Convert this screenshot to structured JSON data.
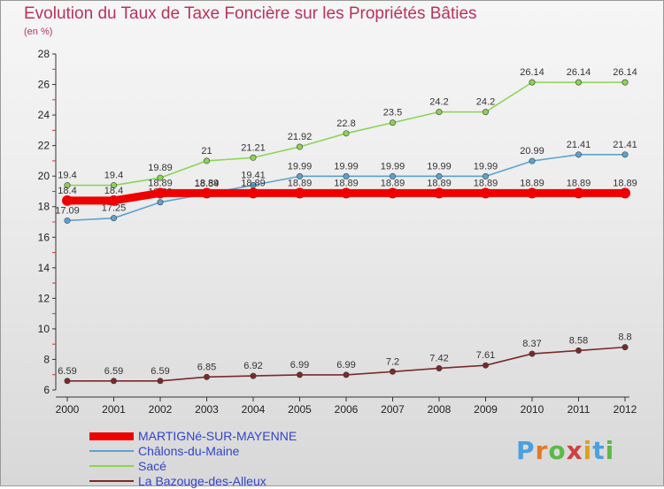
{
  "title": "Evolution du Taux de Taxe Foncière sur les Propriétés Bâties",
  "unit_label": "(en %)",
  "logo": {
    "text": "Proxiti"
  },
  "chart_data": {
    "type": "line",
    "x": [
      "2000",
      "2001",
      "2002",
      "2003",
      "2004",
      "2005",
      "2006",
      "2007",
      "2008",
      "2009",
      "2010",
      "2011",
      "2012"
    ],
    "ylim": [
      6,
      28
    ],
    "yticks": [
      "6",
      "8",
      "10",
      "12",
      "14",
      "16",
      "18",
      "20",
      "22",
      "24",
      "26",
      "28"
    ],
    "grid": false,
    "legend": "bottom-left",
    "series": [
      {
        "name": "MARTIGNé-SUR-MAYENNE",
        "color": "#ee0000",
        "values": [
          18.4,
          18.4,
          18.89,
          18.89,
          18.89,
          18.89,
          18.89,
          18.89,
          18.89,
          18.89,
          18.89,
          18.89,
          18.89
        ],
        "labels": [
          "18.4",
          "18.4",
          "18.89",
          "18.89",
          "18.89",
          "18.89",
          "18.89",
          "18.89",
          "18.89",
          "18.89",
          "18.89",
          "18.89",
          "18.89"
        ]
      },
      {
        "name": "Châlons-du-Maine",
        "color": "#5ba3d0",
        "values": [
          17.09,
          17.25,
          18.29,
          18.84,
          19.41,
          19.99,
          19.99,
          19.99,
          19.99,
          19.99,
          20.99,
          21.41,
          21.41
        ],
        "labels": [
          "17.09",
          "17.25",
          "18.29",
          "18.84",
          "19.41",
          "19.99",
          "19.99",
          "19.99",
          "19.99",
          "19.99",
          "20.99",
          "21.41",
          "21.41"
        ]
      },
      {
        "name": "Sacé",
        "color": "#8ad454",
        "values": [
          19.4,
          19.4,
          19.89,
          21,
          21.21,
          21.92,
          22.8,
          23.5,
          24.2,
          24.2,
          26.14,
          26.14,
          26.14
        ],
        "labels": [
          "19.4",
          "19.4",
          "19.89",
          "21",
          "21.21",
          "21.92",
          "22.8",
          "23.5",
          "24.2",
          "24.2",
          "26.14",
          "26.14",
          "26.14"
        ]
      },
      {
        "name": "La Bazouge-des-Alleux",
        "color": "#7a2a2a",
        "values": [
          6.59,
          6.59,
          6.59,
          6.85,
          6.92,
          6.99,
          6.99,
          7.2,
          7.42,
          7.61,
          8.37,
          8.58,
          8.8
        ],
        "labels": [
          "6.59",
          "6.59",
          "6.59",
          "6.85",
          "6.92",
          "6.99",
          "6.99",
          "7.2",
          "7.42",
          "7.61",
          "8.37",
          "8.58",
          "8.8"
        ]
      }
    ]
  }
}
